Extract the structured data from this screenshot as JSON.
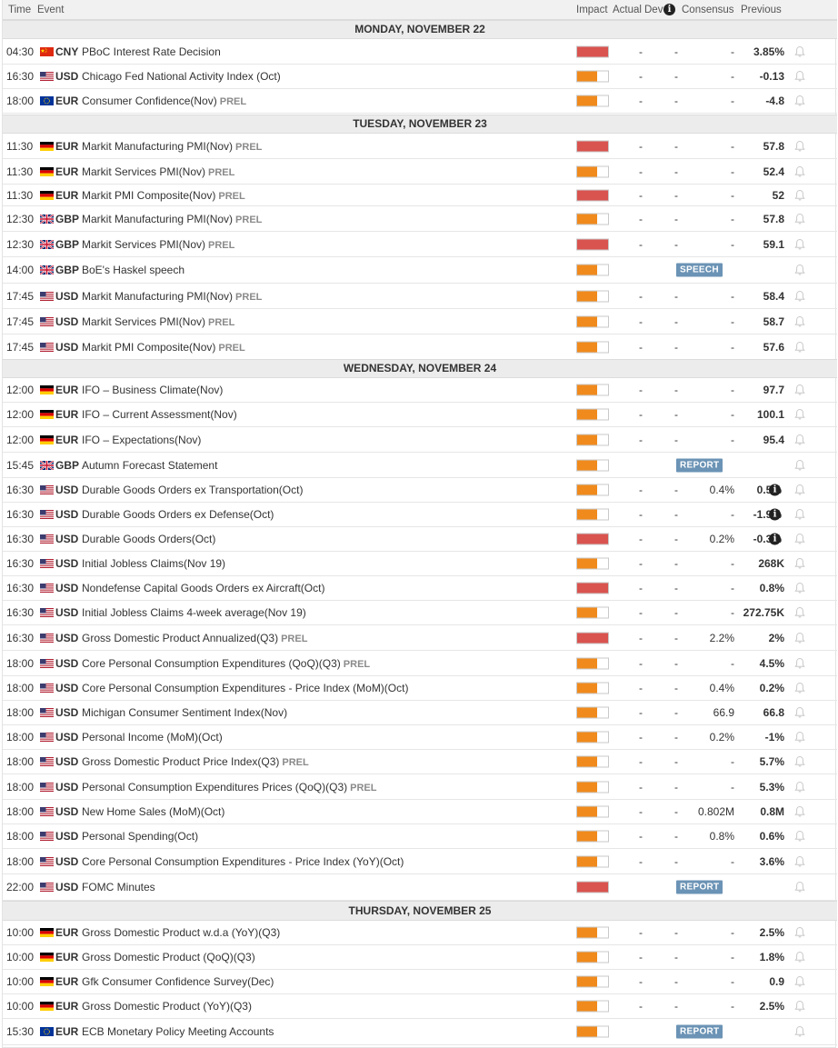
{
  "header": {
    "time": "Time",
    "event": "Event",
    "impact": "Impact",
    "actual": "Actual",
    "dev": "Dev",
    "consensus": "Consensus",
    "previous": "Previous"
  },
  "colors": {
    "high_impact": "#d9534f",
    "medium_impact": "#f08a1c",
    "badge": "#6b93b5",
    "day_header_bg": "#ececec"
  },
  "days": [
    {
      "title": "MONDAY, NOVEMBER 22",
      "events": [
        {
          "time": "04:30",
          "flag": "CN",
          "currency": "CNY",
          "name": "PBoC Interest Rate Decision",
          "prel": "",
          "impact": "high",
          "actual": "-",
          "dev": "-",
          "consensus": "-",
          "previous": "3.85%",
          "badge": "",
          "info": false
        },
        {
          "time": "16:30",
          "flag": "US",
          "currency": "USD",
          "name": "Chicago Fed National Activity Index (Oct)",
          "prel": "",
          "impact": "medium",
          "actual": "-",
          "dev": "-",
          "consensus": "-",
          "previous": "-0.13",
          "badge": "",
          "info": false
        },
        {
          "time": "18:00",
          "flag": "EU",
          "currency": "EUR",
          "name": "Consumer Confidence(Nov)",
          "prel": "PREL",
          "impact": "medium",
          "actual": "-",
          "dev": "-",
          "consensus": "-",
          "previous": "-4.8",
          "badge": "",
          "info": false
        }
      ]
    },
    {
      "title": "TUESDAY, NOVEMBER 23",
      "events": [
        {
          "time": "11:30",
          "flag": "DE",
          "currency": "EUR",
          "name": "Markit Manufacturing PMI(Nov)",
          "prel": "PREL",
          "impact": "high",
          "actual": "-",
          "dev": "-",
          "consensus": "-",
          "previous": "57.8",
          "badge": "",
          "info": false
        },
        {
          "time": "11:30",
          "flag": "DE",
          "currency": "EUR",
          "name": "Markit Services PMI(Nov)",
          "prel": "PREL",
          "impact": "medium",
          "actual": "-",
          "dev": "-",
          "consensus": "-",
          "previous": "52.4",
          "badge": "",
          "info": false
        },
        {
          "time": "11:30",
          "flag": "DE",
          "currency": "EUR",
          "name": "Markit PMI Composite(Nov)",
          "prel": "PREL",
          "impact": "high",
          "actual": "-",
          "dev": "-",
          "consensus": "-",
          "previous": "52",
          "badge": "",
          "info": false
        },
        {
          "time": "12:30",
          "flag": "GB",
          "currency": "GBP",
          "name": "Markit Manufacturing PMI(Nov)",
          "prel": "PREL",
          "impact": "medium",
          "actual": "-",
          "dev": "-",
          "consensus": "-",
          "previous": "57.8",
          "badge": "",
          "info": false
        },
        {
          "time": "12:30",
          "flag": "GB",
          "currency": "GBP",
          "name": "Markit Services PMI(Nov)",
          "prel": "PREL",
          "impact": "high",
          "actual": "-",
          "dev": "-",
          "consensus": "-",
          "previous": "59.1",
          "badge": "",
          "info": false
        },
        {
          "time": "14:00",
          "flag": "GB",
          "currency": "GBP",
          "name": "BoE's Haskel speech",
          "prel": "",
          "impact": "medium",
          "actual": "",
          "dev": "",
          "consensus": "",
          "previous": "",
          "badge": "SPEECH",
          "info": false
        },
        {
          "time": "17:45",
          "flag": "US",
          "currency": "USD",
          "name": "Markit Manufacturing PMI(Nov)",
          "prel": "PREL",
          "impact": "medium",
          "actual": "-",
          "dev": "-",
          "consensus": "-",
          "previous": "58.4",
          "badge": "",
          "info": false
        },
        {
          "time": "17:45",
          "flag": "US",
          "currency": "USD",
          "name": "Markit Services PMI(Nov)",
          "prel": "PREL",
          "impact": "medium",
          "actual": "-",
          "dev": "-",
          "consensus": "-",
          "previous": "58.7",
          "badge": "",
          "info": false
        },
        {
          "time": "17:45",
          "flag": "US",
          "currency": "USD",
          "name": "Markit PMI Composite(Nov)",
          "prel": "PREL",
          "impact": "medium",
          "actual": "-",
          "dev": "-",
          "consensus": "-",
          "previous": "57.6",
          "badge": "",
          "info": false
        }
      ]
    },
    {
      "title": "WEDNESDAY, NOVEMBER 24",
      "events": [
        {
          "time": "12:00",
          "flag": "DE",
          "currency": "EUR",
          "name": "IFO – Business Climate(Nov)",
          "prel": "",
          "impact": "medium",
          "actual": "-",
          "dev": "-",
          "consensus": "-",
          "previous": "97.7",
          "badge": "",
          "info": false
        },
        {
          "time": "12:00",
          "flag": "DE",
          "currency": "EUR",
          "name": "IFO – Current Assessment(Nov)",
          "prel": "",
          "impact": "medium",
          "actual": "-",
          "dev": "-",
          "consensus": "-",
          "previous": "100.1",
          "badge": "",
          "info": false
        },
        {
          "time": "12:00",
          "flag": "DE",
          "currency": "EUR",
          "name": "IFO – Expectations(Nov)",
          "prel": "",
          "impact": "medium",
          "actual": "-",
          "dev": "-",
          "consensus": "-",
          "previous": "95.4",
          "badge": "",
          "info": false
        },
        {
          "time": "15:45",
          "flag": "GB",
          "currency": "GBP",
          "name": "Autumn Forecast Statement",
          "prel": "",
          "impact": "medium",
          "actual": "",
          "dev": "",
          "consensus": "",
          "previous": "",
          "badge": "REPORT",
          "info": false
        },
        {
          "time": "16:30",
          "flag": "US",
          "currency": "USD",
          "name": "Durable Goods Orders ex Transportation(Oct)",
          "prel": "",
          "impact": "medium",
          "actual": "-",
          "dev": "-",
          "consensus": "0.4%",
          "previous": "0.5%",
          "badge": "",
          "info": true
        },
        {
          "time": "16:30",
          "flag": "US",
          "currency": "USD",
          "name": "Durable Goods Orders ex Defense(Oct)",
          "prel": "",
          "impact": "medium",
          "actual": "-",
          "dev": "-",
          "consensus": "-",
          "previous": "-1.9%",
          "badge": "",
          "info": true
        },
        {
          "time": "16:30",
          "flag": "US",
          "currency": "USD",
          "name": "Durable Goods Orders(Oct)",
          "prel": "",
          "impact": "high",
          "actual": "-",
          "dev": "-",
          "consensus": "0.2%",
          "previous": "-0.3%",
          "badge": "",
          "info": true
        },
        {
          "time": "16:30",
          "flag": "US",
          "currency": "USD",
          "name": "Initial Jobless Claims(Nov 19)",
          "prel": "",
          "impact": "medium",
          "actual": "-",
          "dev": "-",
          "consensus": "-",
          "previous": "268K",
          "badge": "",
          "info": false
        },
        {
          "time": "16:30",
          "flag": "US",
          "currency": "USD",
          "name": "Nondefense Capital Goods Orders ex Aircraft(Oct)",
          "prel": "",
          "impact": "high",
          "actual": "-",
          "dev": "-",
          "consensus": "-",
          "previous": "0.8%",
          "badge": "",
          "info": false
        },
        {
          "time": "16:30",
          "flag": "US",
          "currency": "USD",
          "name": "Initial Jobless Claims 4-week average(Nov 19)",
          "prel": "",
          "impact": "medium",
          "actual": "-",
          "dev": "-",
          "consensus": "-",
          "previous": "272.75K",
          "badge": "",
          "info": false
        },
        {
          "time": "16:30",
          "flag": "US",
          "currency": "USD",
          "name": "Gross Domestic Product Annualized(Q3)",
          "prel": "PREL",
          "impact": "high",
          "actual": "-",
          "dev": "-",
          "consensus": "2.2%",
          "previous": "2%",
          "badge": "",
          "info": false
        },
        {
          "time": "18:00",
          "flag": "US",
          "currency": "USD",
          "name": "Core Personal Consumption Expenditures (QoQ)(Q3)",
          "prel": "PREL",
          "impact": "medium",
          "actual": "-",
          "dev": "-",
          "consensus": "-",
          "previous": "4.5%",
          "badge": "",
          "info": false
        },
        {
          "time": "18:00",
          "flag": "US",
          "currency": "USD",
          "name": "Core Personal Consumption Expenditures - Price Index (MoM)(Oct)",
          "prel": "",
          "impact": "medium",
          "actual": "-",
          "dev": "-",
          "consensus": "0.4%",
          "previous": "0.2%",
          "badge": "",
          "info": false
        },
        {
          "time": "18:00",
          "flag": "US",
          "currency": "USD",
          "name": "Michigan Consumer Sentiment Index(Nov)",
          "prel": "",
          "impact": "medium",
          "actual": "-",
          "dev": "-",
          "consensus": "66.9",
          "previous": "66.8",
          "badge": "",
          "info": false
        },
        {
          "time": "18:00",
          "flag": "US",
          "currency": "USD",
          "name": "Personal Income (MoM)(Oct)",
          "prel": "",
          "impact": "medium",
          "actual": "-",
          "dev": "-",
          "consensus": "0.2%",
          "previous": "-1%",
          "badge": "",
          "info": false
        },
        {
          "time": "18:00",
          "flag": "US",
          "currency": "USD",
          "name": "Gross Domestic Product Price Index(Q3)",
          "prel": "PREL",
          "impact": "medium",
          "actual": "-",
          "dev": "-",
          "consensus": "-",
          "previous": "5.7%",
          "badge": "",
          "info": false
        },
        {
          "time": "18:00",
          "flag": "US",
          "currency": "USD",
          "name": "Personal Consumption Expenditures Prices (QoQ)(Q3)",
          "prel": "PREL",
          "impact": "medium",
          "actual": "-",
          "dev": "-",
          "consensus": "-",
          "previous": "5.3%",
          "badge": "",
          "info": false
        },
        {
          "time": "18:00",
          "flag": "US",
          "currency": "USD",
          "name": "New Home Sales (MoM)(Oct)",
          "prel": "",
          "impact": "medium",
          "actual": "-",
          "dev": "-",
          "consensus": "0.802M",
          "previous": "0.8M",
          "badge": "",
          "info": false
        },
        {
          "time": "18:00",
          "flag": "US",
          "currency": "USD",
          "name": "Personal Spending(Oct)",
          "prel": "",
          "impact": "medium",
          "actual": "-",
          "dev": "-",
          "consensus": "0.8%",
          "previous": "0.6%",
          "badge": "",
          "info": false
        },
        {
          "time": "18:00",
          "flag": "US",
          "currency": "USD",
          "name": "Core Personal Consumption Expenditures - Price Index (YoY)(Oct)",
          "prel": "",
          "impact": "medium",
          "actual": "-",
          "dev": "-",
          "consensus": "-",
          "previous": "3.6%",
          "badge": "",
          "info": false
        },
        {
          "time": "22:00",
          "flag": "US",
          "currency": "USD",
          "name": "FOMC Minutes",
          "prel": "",
          "impact": "high",
          "actual": "",
          "dev": "",
          "consensus": "",
          "previous": "",
          "badge": "REPORT",
          "info": false
        }
      ]
    },
    {
      "title": "THURSDAY, NOVEMBER 25",
      "events": [
        {
          "time": "10:00",
          "flag": "DE",
          "currency": "EUR",
          "name": "Gross Domestic Product w.d.a (YoY)(Q3)",
          "prel": "",
          "impact": "medium",
          "actual": "-",
          "dev": "-",
          "consensus": "-",
          "previous": "2.5%",
          "badge": "",
          "info": false
        },
        {
          "time": "10:00",
          "flag": "DE",
          "currency": "EUR",
          "name": "Gross Domestic Product (QoQ)(Q3)",
          "prel": "",
          "impact": "medium",
          "actual": "-",
          "dev": "-",
          "consensus": "-",
          "previous": "1.8%",
          "badge": "",
          "info": false
        },
        {
          "time": "10:00",
          "flag": "DE",
          "currency": "EUR",
          "name": "Gfk Consumer Confidence Survey(Dec)",
          "prel": "",
          "impact": "medium",
          "actual": "-",
          "dev": "-",
          "consensus": "-",
          "previous": "0.9",
          "badge": "",
          "info": false
        },
        {
          "time": "10:00",
          "flag": "DE",
          "currency": "EUR",
          "name": "Gross Domestic Product (YoY)(Q3)",
          "prel": "",
          "impact": "medium",
          "actual": "-",
          "dev": "-",
          "consensus": "-",
          "previous": "2.5%",
          "badge": "",
          "info": false
        },
        {
          "time": "15:30",
          "flag": "EU",
          "currency": "EUR",
          "name": "ECB Monetary Policy Meeting Accounts",
          "prel": "",
          "impact": "medium",
          "actual": "",
          "dev": "",
          "consensus": "",
          "previous": "",
          "badge": "REPORT",
          "info": false
        }
      ]
    }
  ]
}
